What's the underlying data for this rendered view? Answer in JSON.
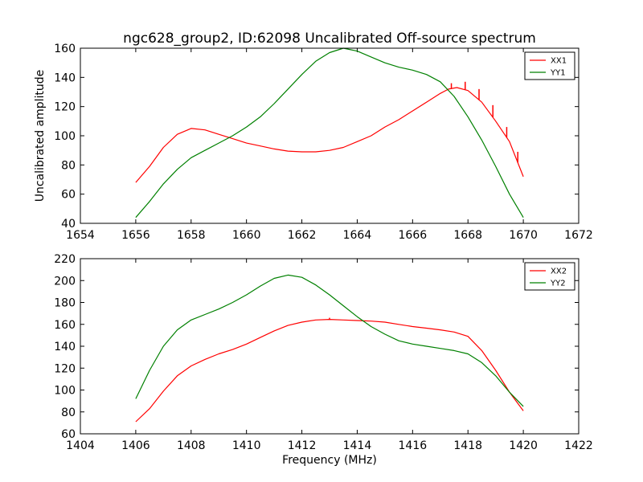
{
  "figure": {
    "title": "ngc628_group2, ID:62098 Uncalibrated Off-source spectrum",
    "ylabel": "Uncalibrated amplitude",
    "xlabel": "Frequency (MHz)"
  },
  "chart_data": [
    {
      "type": "line",
      "title": "ngc628_group2, ID:62098 Uncalibrated Off-source spectrum",
      "xlabel": "",
      "ylabel": "Uncalibrated amplitude",
      "xlim": [
        1654,
        1672
      ],
      "ylim": [
        40,
        160
      ],
      "xticks": [
        1654,
        1656,
        1658,
        1660,
        1662,
        1664,
        1666,
        1668,
        1670,
        1672
      ],
      "yticks": [
        40,
        60,
        80,
        100,
        120,
        140,
        160
      ],
      "legend": "top-right",
      "series": [
        {
          "name": "XX1",
          "color": "#ff0000",
          "x": [
            1656.0,
            1656.5,
            1657.0,
            1657.5,
            1658.0,
            1658.5,
            1659.0,
            1659.5,
            1660.0,
            1660.5,
            1661.0,
            1661.5,
            1662.0,
            1662.5,
            1663.0,
            1663.5,
            1664.0,
            1664.5,
            1665.0,
            1665.5,
            1666.0,
            1666.5,
            1667.0,
            1667.3,
            1667.6,
            1668.0,
            1668.5,
            1669.0,
            1669.5,
            1670.0
          ],
          "values": [
            68,
            79,
            92,
            101,
            105,
            104,
            101,
            98,
            95,
            93,
            91,
            89.5,
            89,
            89,
            90,
            92,
            96,
            100,
            106,
            111,
            117,
            123,
            129,
            132,
            133,
            131,
            123,
            110,
            96,
            72
          ],
          "spikes": [
            [
              1667.4,
              136
            ],
            [
              1667.9,
              137
            ],
            [
              1668.4,
              132
            ],
            [
              1668.9,
              121
            ],
            [
              1669.4,
              106
            ],
            [
              1669.8,
              89
            ]
          ]
        },
        {
          "name": "YY1",
          "color": "#008000",
          "x": [
            1656.0,
            1656.5,
            1657.0,
            1657.5,
            1658.0,
            1658.5,
            1659.0,
            1659.5,
            1660.0,
            1660.5,
            1661.0,
            1661.5,
            1662.0,
            1662.5,
            1663.0,
            1663.5,
            1664.0,
            1664.5,
            1665.0,
            1665.5,
            1666.0,
            1666.5,
            1667.0,
            1667.5,
            1668.0,
            1668.5,
            1669.0,
            1669.5,
            1670.0
          ],
          "values": [
            44,
            55,
            67,
            77,
            85,
            90,
            95,
            100,
            106,
            113,
            122,
            132,
            142,
            151,
            157,
            160,
            158,
            154,
            150,
            147,
            145,
            142,
            137,
            127,
            113,
            97,
            79,
            60,
            44
          ],
          "spikes": []
        }
      ]
    },
    {
      "type": "line",
      "title": "",
      "xlabel": "Frequency (MHz)",
      "ylabel": "",
      "xlim": [
        1404,
        1422
      ],
      "ylim": [
        60,
        220
      ],
      "xticks": [
        1404,
        1406,
        1408,
        1410,
        1412,
        1414,
        1416,
        1418,
        1420,
        1422
      ],
      "yticks": [
        60,
        80,
        100,
        120,
        140,
        160,
        180,
        200,
        220
      ],
      "legend": "top-right",
      "series": [
        {
          "name": "XX2",
          "color": "#ff0000",
          "x": [
            1406.0,
            1406.5,
            1407.0,
            1407.5,
            1408.0,
            1408.5,
            1409.0,
            1409.5,
            1410.0,
            1410.5,
            1411.0,
            1411.5,
            1412.0,
            1412.5,
            1413.0,
            1413.5,
            1414.0,
            1414.5,
            1415.0,
            1415.5,
            1416.0,
            1416.5,
            1417.0,
            1417.5,
            1418.0,
            1418.5,
            1419.0,
            1419.5,
            1420.0
          ],
          "values": [
            71,
            83,
            99,
            113,
            122,
            128,
            133,
            137,
            142,
            148,
            154,
            159,
            162,
            164,
            164.5,
            164,
            163.5,
            163,
            162,
            160,
            158,
            156.5,
            155,
            153,
            149,
            136,
            118,
            98,
            81
          ],
          "spikes": [
            [
              1413.0,
              166
            ]
          ]
        },
        {
          "name": "YY2",
          "color": "#008000",
          "x": [
            1406.0,
            1406.5,
            1407.0,
            1407.5,
            1408.0,
            1408.5,
            1409.0,
            1409.5,
            1410.0,
            1410.5,
            1411.0,
            1411.5,
            1412.0,
            1412.5,
            1413.0,
            1413.5,
            1414.0,
            1414.5,
            1415.0,
            1415.5,
            1416.0,
            1416.5,
            1417.0,
            1417.5,
            1418.0,
            1418.5,
            1419.0,
            1419.5,
            1420.0
          ],
          "values": [
            92,
            118,
            140,
            155,
            164,
            169,
            174,
            180,
            187,
            195,
            202,
            205,
            203,
            196,
            187,
            177,
            167,
            158,
            151,
            145,
            142,
            140,
            138,
            136,
            133,
            125,
            113,
            98,
            85
          ],
          "spikes": []
        }
      ]
    }
  ]
}
